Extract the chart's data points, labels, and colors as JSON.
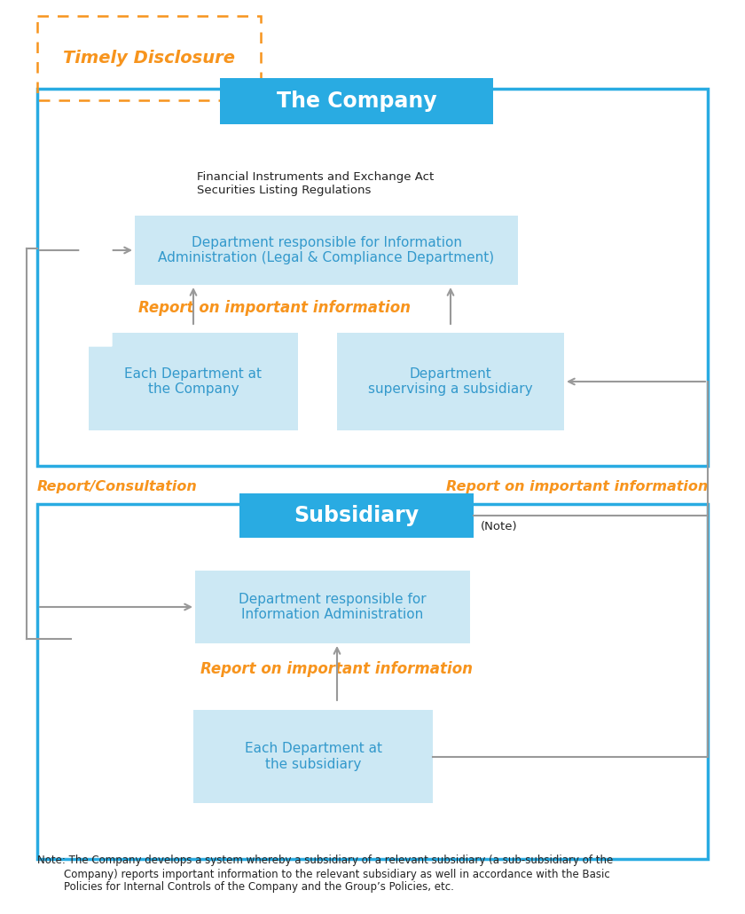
{
  "blue_box_color": "#29abe2",
  "light_blue_box": "#cce8f4",
  "orange_text": "#f7941d",
  "dark_blue_text": "#3399cc",
  "black_text": "#222222",
  "border_blue": "#29abe2",
  "border_gray": "#999999",
  "white": "#ffffff",
  "title": "Timely Disclosure",
  "company_label": "The Company",
  "dept_info_admin": "Department responsible for Information\nAdministration (Legal & Compliance Department)",
  "report_important_1": "Report on important information",
  "each_dept_company": "Each Department at\nthe Company",
  "dept_supervising": "Department\nsupervising a subsidiary",
  "report_consultation": "Report/Consultation",
  "report_important_right": "Report on important information",
  "subsidiary_label": "Subsidiary",
  "note_label": "(Note)",
  "dept_info_admin_sub": "Department responsible for\nInformation Administration",
  "report_important_sub": "Report on important information",
  "each_dept_sub": "Each Department at\nthe subsidiary",
  "note_text": "Note: The Company develops a system whereby a subsidiary of a relevant subsidiary (a sub-subsidiary of the\n        Company) reports important information to the relevant subsidiary as well in accordance with the Basic\n        Policies for Internal Controls of the Company and the Group’s Policies, etc.",
  "financial_text": "Financial Instruments and Exchange Act\nSecurities Listing Regulations"
}
